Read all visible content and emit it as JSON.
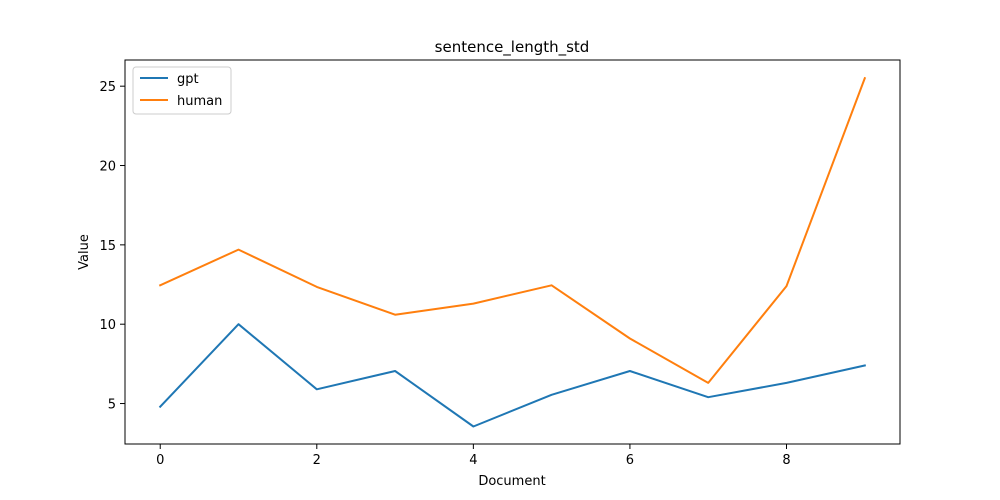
{
  "chart_data": {
    "type": "line",
    "title": "sentence_length_std",
    "xlabel": "Document",
    "ylabel": "Value",
    "x": [
      0,
      1,
      2,
      3,
      4,
      5,
      6,
      7,
      8,
      9
    ],
    "xlim": [
      -0.45,
      9.45
    ],
    "ylim": [
      2.45,
      26.65
    ],
    "xticks": [
      0,
      2,
      4,
      6,
      8
    ],
    "yticks": [
      5,
      10,
      15,
      20,
      25
    ],
    "grid": false,
    "legend_position": "top-left",
    "series": [
      {
        "name": "gpt",
        "color": "#1f77b4",
        "values": [
          4.8,
          10.0,
          5.9,
          7.05,
          3.55,
          5.55,
          7.05,
          5.4,
          6.3,
          7.4
        ]
      },
      {
        "name": "human",
        "color": "#ff7f0e",
        "values": [
          12.45,
          14.7,
          12.35,
          10.6,
          11.3,
          12.45,
          9.1,
          6.3,
          12.4,
          25.5
        ]
      }
    ]
  }
}
